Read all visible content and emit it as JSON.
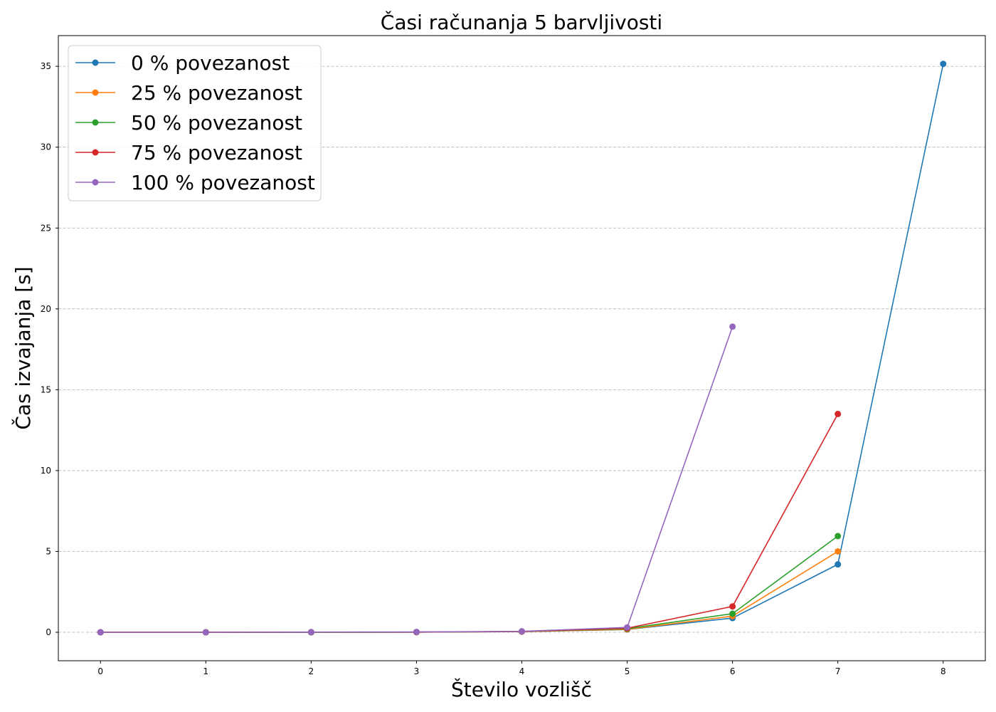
{
  "chart_data": {
    "type": "line",
    "title": "Časi računanja 5 barvljivosti",
    "xlabel": "Število vozlišč",
    "ylabel": "Čas izvajanja [s]",
    "xlim": [
      -0.4,
      8.4
    ],
    "ylim": [
      -1.76,
      36.9
    ],
    "xticks": [
      0,
      1,
      2,
      3,
      4,
      5,
      6,
      7,
      8
    ],
    "yticks": [
      0,
      5,
      10,
      15,
      20,
      25,
      30,
      35
    ],
    "grid": "y-dashed",
    "legend_position": "top-left",
    "series": [
      {
        "name": "0 % povezanost",
        "color": "#1f77b4",
        "x": [
          0,
          1,
          2,
          3,
          4,
          5,
          6,
          7,
          8
        ],
        "y": [
          0.0,
          0.0,
          0.0,
          0.01,
          0.04,
          0.17,
          0.88,
          4.2,
          35.15
        ]
      },
      {
        "name": "25 % povezanost",
        "color": "#ff7f0e",
        "x": [
          0,
          1,
          2,
          3,
          4,
          5,
          6,
          7
        ],
        "y": [
          0.0,
          0.0,
          0.0,
          0.01,
          0.04,
          0.18,
          1.0,
          5.0
        ]
      },
      {
        "name": "50 % povezanost",
        "color": "#2ca02c",
        "x": [
          0,
          1,
          2,
          3,
          4,
          5,
          6,
          7
        ],
        "y": [
          0.0,
          0.0,
          0.0,
          0.01,
          0.05,
          0.22,
          1.15,
          5.95
        ]
      },
      {
        "name": "75 % povezanost",
        "color": "#d62728",
        "x": [
          0,
          1,
          2,
          3,
          4,
          5,
          6,
          7
        ],
        "y": [
          0.0,
          0.0,
          0.01,
          0.01,
          0.05,
          0.25,
          1.6,
          13.5
        ]
      },
      {
        "name": "100 % povezanost",
        "color": "#9467bd",
        "x": [
          0,
          1,
          2,
          3,
          4,
          5,
          6
        ],
        "y": [
          0.0,
          0.0,
          0.01,
          0.02,
          0.06,
          0.3,
          18.9
        ]
      }
    ]
  }
}
